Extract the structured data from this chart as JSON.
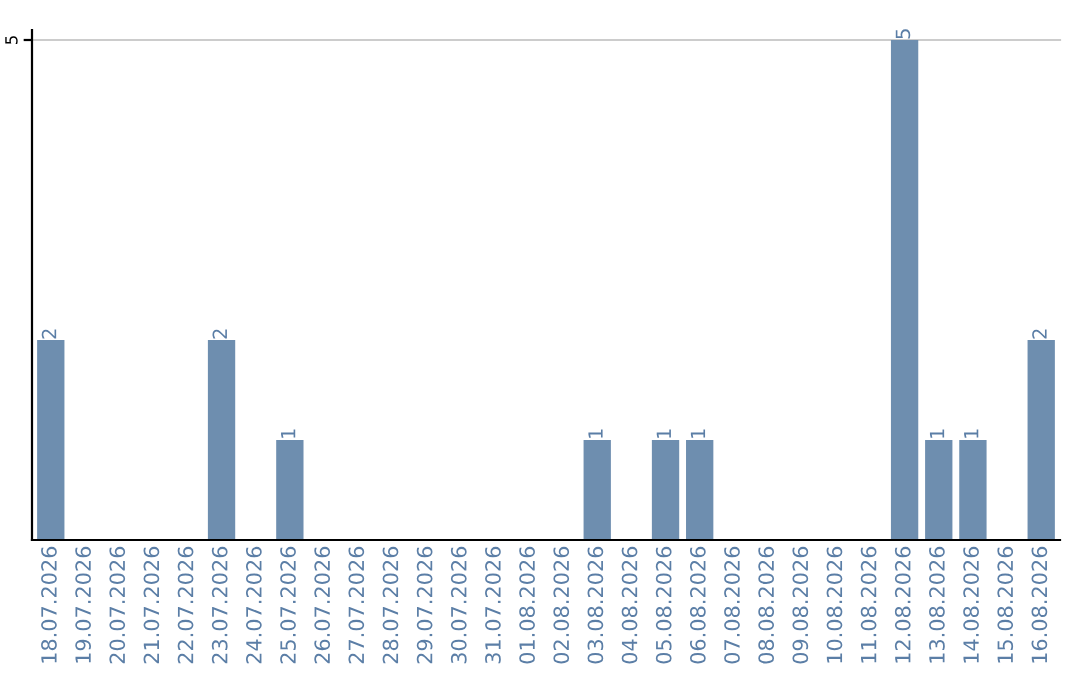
{
  "chart_data": {
    "type": "bar",
    "categories": [
      "18.07.2026",
      "19.07.2026",
      "20.07.2026",
      "21.07.2026",
      "22.07.2026",
      "23.07.2026",
      "24.07.2026",
      "25.07.2026",
      "26.07.2026",
      "27.07.2026",
      "28.07.2026",
      "29.07.2026",
      "30.07.2026",
      "31.07.2026",
      "01.08.2026",
      "02.08.2026",
      "03.08.2026",
      "04.08.2026",
      "05.08.2026",
      "06.08.2026",
      "07.08.2026",
      "08.08.2026",
      "09.08.2026",
      "10.08.2026",
      "11.08.2026",
      "12.08.2026",
      "13.08.2026",
      "14.08.2026",
      "15.08.2026",
      "16.08.2026"
    ],
    "values": [
      2,
      0,
      0,
      0,
      0,
      2,
      0,
      1,
      0,
      0,
      0,
      0,
      0,
      0,
      0,
      0,
      1,
      0,
      1,
      1,
      0,
      0,
      0,
      0,
      0,
      5,
      1,
      1,
      0,
      2
    ],
    "value_labels": [
      "2",
      null,
      null,
      null,
      null,
      "2",
      null,
      "1",
      null,
      null,
      null,
      null,
      null,
      null,
      null,
      null,
      "1",
      null,
      "1",
      "1",
      null,
      null,
      null,
      null,
      null,
      "5",
      "1",
      "1",
      null,
      "2"
    ],
    "color": "#6e8eaf",
    "ylim": [
      0,
      5.1
    ],
    "yticks": [
      5
    ],
    "grid": "y"
  }
}
